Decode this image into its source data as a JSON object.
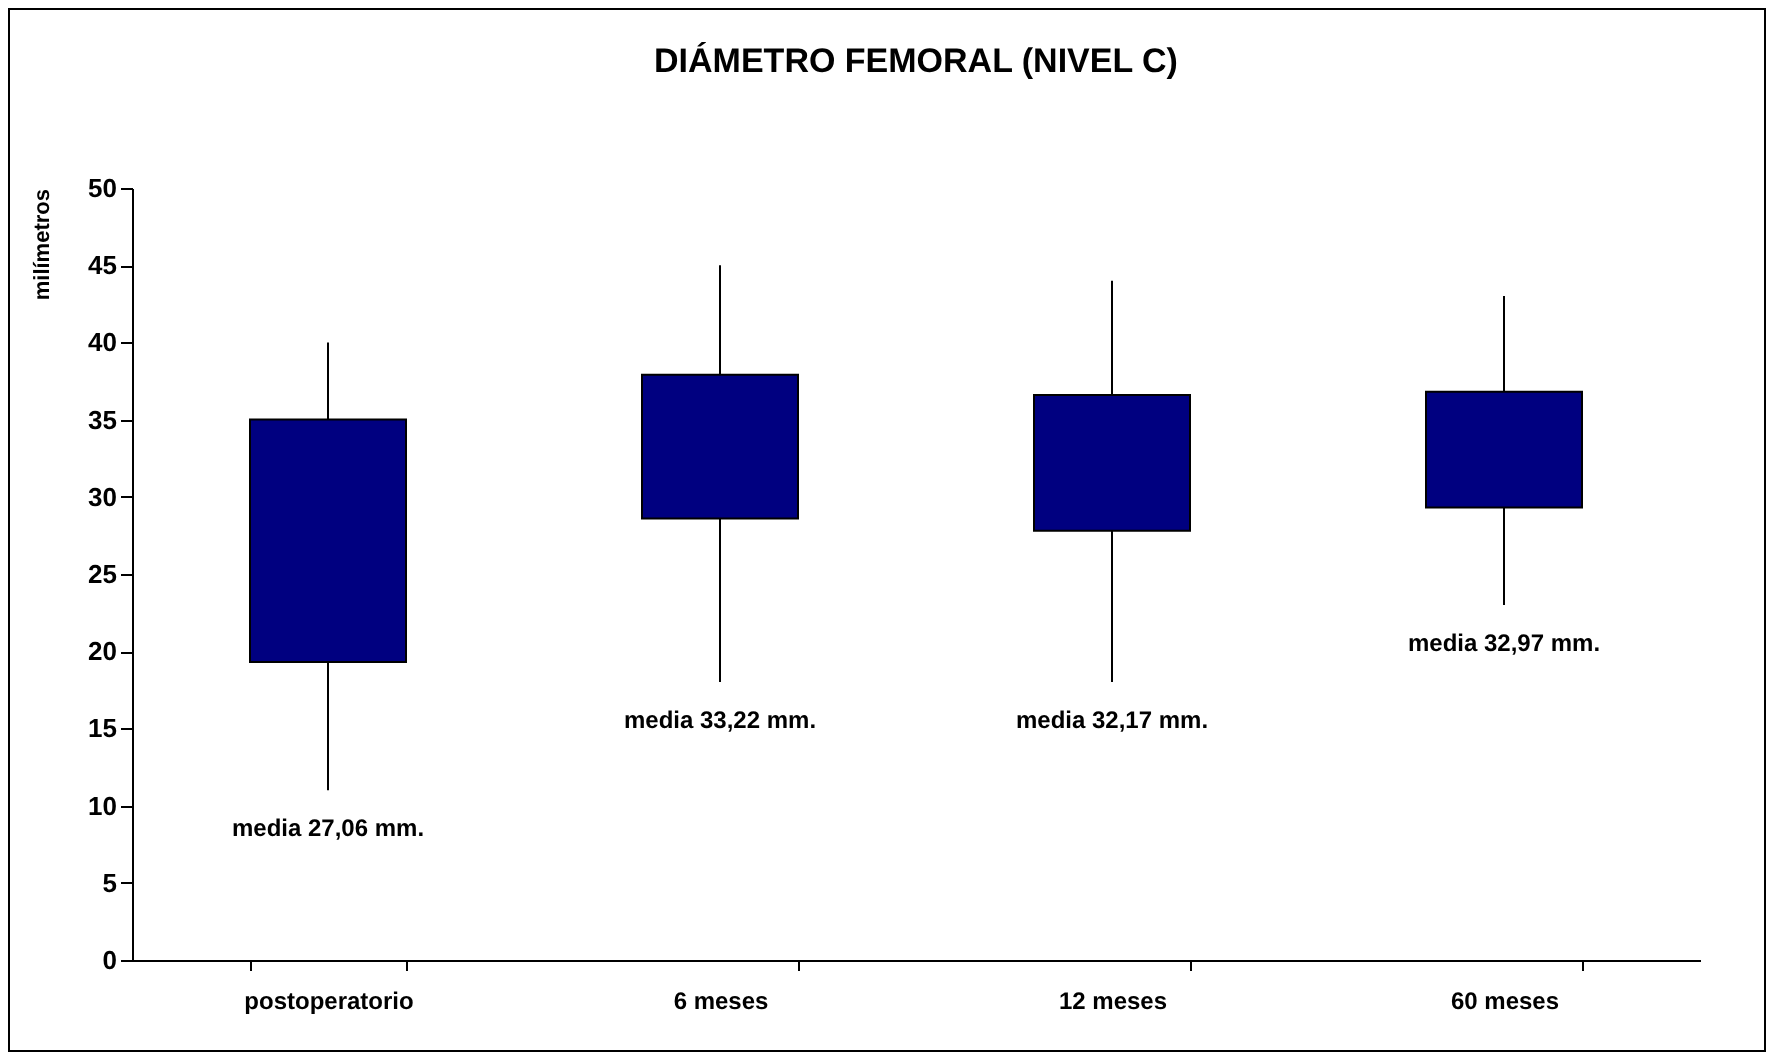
{
  "chart_data": {
    "type": "candlestick",
    "title": "DIÁMETRO FEMORAL (NIVEL C)",
    "ylabel": "milímetros",
    "categories": [
      "postoperatorio",
      "6 meses",
      "12 meses",
      "60 meses"
    ],
    "ohlc": [
      [
        19.3,
        40,
        11,
        35
      ],
      [
        28.6,
        45,
        18,
        37.9
      ],
      [
        27.8,
        44,
        18,
        36.6
      ],
      [
        29.3,
        43,
        23,
        36.8
      ]
    ],
    "color": "#000080",
    "ylim": [
      0,
      50
    ],
    "yticks": [
      0,
      5,
      10,
      15,
      20,
      25,
      30,
      35,
      40,
      45,
      50
    ],
    "grid": false,
    "annotations": [
      "media 27,06 mm.",
      "media 33,22 mm.",
      "media 32,17 mm.",
      "media 32,97 mm."
    ]
  }
}
